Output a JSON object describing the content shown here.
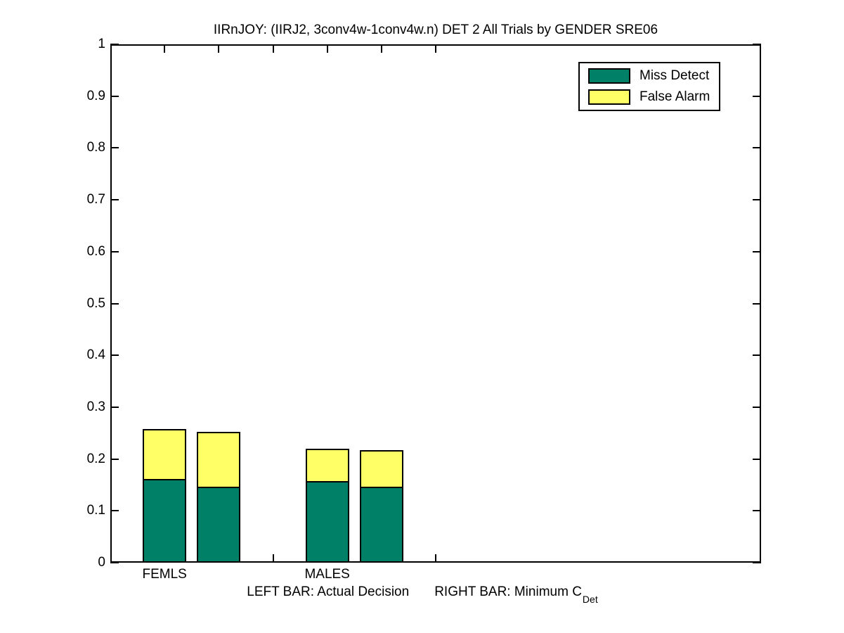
{
  "chart_data": {
    "type": "bar",
    "stacked": true,
    "title": "IIRnJOY: (IIRJ2, 3conv4w-1conv4w.n) DET 2 All Trials by GENDER SRE06",
    "grid": false,
    "box": true,
    "tick_dir": "in",
    "ylim": [
      0,
      1
    ],
    "yticks": [
      0,
      0.1,
      0.2,
      0.3,
      0.4,
      0.5,
      0.6,
      0.7,
      0.8,
      0.9,
      1
    ],
    "ytick_labels": [
      "0",
      "0.1",
      "0.2",
      "0.3",
      "0.4",
      "0.5",
      "0.6",
      "0.7",
      "0.8",
      "0.9",
      "1"
    ],
    "xlim": [
      0.5,
      6.5
    ],
    "xticks": [
      1,
      1.5,
      2,
      2.5,
      3,
      3.5
    ],
    "group_labels": [
      {
        "label": "FEMLS",
        "x": 1
      },
      {
        "label": "MALES",
        "x": 2.5
      }
    ],
    "bar_width": 0.4,
    "bars": [
      {
        "id": "femls-actual-decision",
        "group": "FEMLS",
        "kind": "Actual Decision",
        "x": 1
      },
      {
        "id": "femls-minimum-cdet",
        "group": "FEMLS",
        "kind": "Minimum CDet",
        "x": 1.5
      },
      {
        "id": "males-actual-decision",
        "group": "MALES",
        "kind": "Actual Decision",
        "x": 2.5
      },
      {
        "id": "males-minimum-cdet",
        "group": "MALES",
        "kind": "Minimum CDet",
        "x": 3
      }
    ],
    "series": [
      {
        "name": "Miss Detect",
        "color": "#008066",
        "values": [
          0.162,
          0.147,
          0.157,
          0.146
        ]
      },
      {
        "name": "False Alarm",
        "color": "#ffff66",
        "values": [
          0.096,
          0.106,
          0.063,
          0.071
        ]
      }
    ],
    "totals": [
      0.258,
      0.253,
      0.22,
      0.217
    ],
    "legend": {
      "position": "top-right",
      "items": [
        "Miss Detect",
        "False Alarm"
      ]
    }
  },
  "footnote": {
    "left": "LEFT BAR: Actual Decision",
    "right_main": "RIGHT BAR: Minimum C",
    "right_sub": "Det"
  },
  "colors": {
    "miss_detect": "#008066",
    "false_alarm": "#ffff66",
    "axis": "#000000",
    "background": "#ffffff"
  }
}
